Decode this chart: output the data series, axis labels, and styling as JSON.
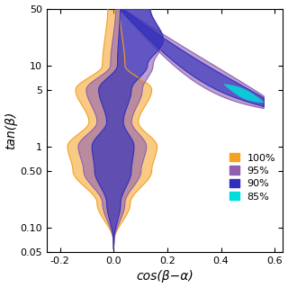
{
  "xlabel": "cos(β−α)",
  "ylabel": "tan(β)",
  "xlim": [
    -0.25,
    0.63
  ],
  "ylim_log": [
    0.05,
    50
  ],
  "yticks": [
    0.05,
    0.1,
    0.5,
    1,
    5,
    10,
    50
  ],
  "ytick_labels": [
    "0.05",
    "0.10",
    "0.50",
    "1",
    "5",
    "10",
    "50"
  ],
  "xticks": [
    -0.2,
    0.0,
    0.2,
    0.4,
    0.6
  ],
  "xtick_labels": [
    "-0.2",
    "0.0",
    "0.2",
    "0.4",
    "0.6"
  ],
  "colors": {
    "100pct": "#F5A020",
    "95pct": "#9060B0",
    "90pct": "#3030BB",
    "85pct": "#00DDDD"
  },
  "legend": [
    {
      "label": "100%",
      "color": "#F5A020"
    },
    {
      "label": "95%",
      "color": "#9060B0"
    },
    {
      "label": "90%",
      "color": "#3030BB"
    },
    {
      "label": "85%",
      "color": "#00DDDD"
    }
  ]
}
